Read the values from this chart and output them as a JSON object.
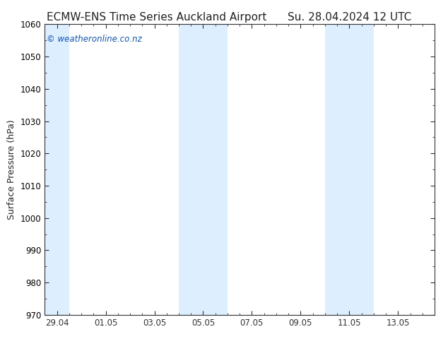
{
  "title_left": "ECMW-ENS Time Series Auckland Airport",
  "title_right": "Su. 28.04.2024 12 UTC",
  "ylabel": "Surface Pressure (hPa)",
  "ylim": [
    970,
    1060
  ],
  "yticks": [
    970,
    980,
    990,
    1000,
    1010,
    1020,
    1030,
    1040,
    1050,
    1060
  ],
  "xtick_labels": [
    "29.04",
    "01.05",
    "03.05",
    "05.05",
    "07.05",
    "09.05",
    "11.05",
    "13.05"
  ],
  "xtick_positions": [
    0.5,
    2.5,
    4.5,
    6.5,
    8.5,
    10.5,
    12.5,
    14.5
  ],
  "xlim": [
    0,
    16
  ],
  "shaded_bands": [
    {
      "start": 0.0,
      "end": 1.0,
      "color": "#ddeeff"
    },
    {
      "start": 5.5,
      "end": 6.5,
      "color": "#ddeeff"
    },
    {
      "start": 6.5,
      "end": 7.5,
      "color": "#ddeeff"
    },
    {
      "start": 11.5,
      "end": 12.5,
      "color": "#ddeeff"
    },
    {
      "start": 12.5,
      "end": 13.5,
      "color": "#ddeeff"
    }
  ],
  "watermark_text": "© weatheronline.co.nz",
  "watermark_color": "#1155aa",
  "watermark_fontsize": 8.5,
  "bg_color": "#ffffff",
  "plot_bg_color": "#ffffff",
  "title_fontsize": 11,
  "ylabel_fontsize": 9,
  "tick_fontsize": 8.5,
  "spine_color": "#333333",
  "tick_color": "#333333",
  "band_color": "#ddeeff"
}
